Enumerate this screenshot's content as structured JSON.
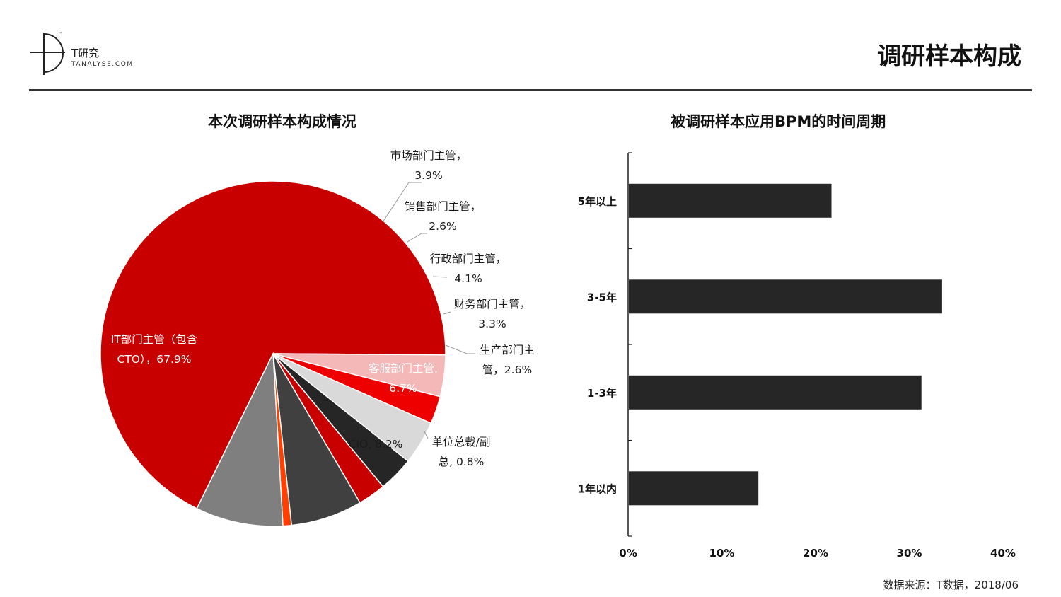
{
  "header": {
    "logo_cn": "T研究",
    "logo_en": "TANALYSE.COM",
    "page_title": "调研样本构成"
  },
  "footer": {
    "source": "数据来源：T数据，2018/06"
  },
  "colors": {
    "dark_bar": "#262626",
    "it_red": "#c80000",
    "pink": "#f4b8b8",
    "bright_red": "#ee0000",
    "light_gray": "#d9d9d9",
    "near_black": "#262626",
    "dark_gray": "#404040",
    "orange": "#ff4000",
    "mid_gray": "#7f7f7f"
  },
  "chart_data": [
    {
      "type": "pie",
      "title": "本次调研样本构成情况",
      "slices": [
        {
          "name": "IT部门主管（包含CTO）",
          "label_lines": [
            "IT部门主管（包含",
            "CTO），67.9%"
          ],
          "value": 67.9,
          "color": "#c80000",
          "label_color": "#ffffff"
        },
        {
          "name": "市场部门主管",
          "label_lines": [
            "市场部门主管，",
            "3.9%"
          ],
          "value": 3.9,
          "color": "#f4b8b8",
          "label_color": "#1a1a1a"
        },
        {
          "name": "销售部门主管",
          "label_lines": [
            "销售部门主管，",
            "2.6%"
          ],
          "value": 2.6,
          "color": "#ee0000",
          "label_color": "#1a1a1a"
        },
        {
          "name": "行政部门主管",
          "label_lines": [
            "行政部门主管，",
            "4.1%"
          ],
          "value": 4.1,
          "color": "#d9d9d9",
          "label_color": "#1a1a1a"
        },
        {
          "name": "财务部门主管",
          "label_lines": [
            "财务部门主管，",
            "3.3%"
          ],
          "value": 3.3,
          "color": "#262626",
          "label_color": "#1a1a1a"
        },
        {
          "name": "生产部门主管",
          "label_lines": [
            "生产部门主",
            "管，2.6%"
          ],
          "value": 2.6,
          "color": "#c80000",
          "label_color": "#1a1a1a"
        },
        {
          "name": "客服部门主管",
          "label_lines": [
            "客服部门主管,",
            "6.7%"
          ],
          "value": 6.7,
          "color": "#404040",
          "label_color": "#ffffff"
        },
        {
          "name": "单位总裁/副总",
          "label_lines": [
            "单位总裁/副",
            "总, 0.8%"
          ],
          "value": 0.8,
          "color": "#ff4000",
          "label_color": "#1a1a1a"
        },
        {
          "name": "CIO",
          "label_lines": [
            "CIO, 8.2%"
          ],
          "value": 8.2,
          "color": "#7f7f7f",
          "label_color": "#1a1a1a"
        }
      ]
    },
    {
      "type": "bar",
      "orientation": "horizontal",
      "title": "被调研样本应用BPM的时间周期",
      "categories": [
        "5年以上",
        "3-5年",
        "1-3年",
        "1年以内"
      ],
      "values": [
        21.7,
        33.5,
        31.3,
        13.9
      ],
      "xlim": [
        0,
        40
      ],
      "xticks": [
        "0%",
        "10%",
        "20%",
        "30%",
        "40%"
      ],
      "grid": false
    }
  ]
}
